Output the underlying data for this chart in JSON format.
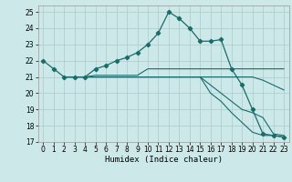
{
  "xlabel": "Humidex (Indice chaleur)",
  "xlim": [
    -0.5,
    23.5
  ],
  "ylim": [
    17,
    25.4
  ],
  "yticks": [
    17,
    18,
    19,
    20,
    21,
    22,
    23,
    24,
    25
  ],
  "xticks": [
    0,
    1,
    2,
    3,
    4,
    5,
    6,
    7,
    8,
    9,
    10,
    11,
    12,
    13,
    14,
    15,
    16,
    17,
    18,
    19,
    20,
    21,
    22,
    23
  ],
  "bg_color": "#cce8e8",
  "grid_color": "#aacccc",
  "line_color": "#1a6b6b",
  "series": [
    {
      "x": [
        0,
        1,
        2,
        3,
        4,
        5,
        6,
        7,
        8,
        9,
        10,
        11,
        12,
        13,
        14,
        15,
        16,
        17,
        18,
        19,
        20,
        21,
        22,
        23
      ],
      "y": [
        22.0,
        21.5,
        21.0,
        21.0,
        21.0,
        21.5,
        21.7,
        22.0,
        22.2,
        22.5,
        23.0,
        23.7,
        25.0,
        24.6,
        24.0,
        23.2,
        23.2,
        23.3,
        21.5,
        20.5,
        19.0,
        17.5,
        17.4,
        17.3
      ],
      "marker": true
    },
    {
      "x": [
        2,
        3,
        4,
        5,
        6,
        7,
        8,
        9,
        10,
        11,
        12,
        13,
        14,
        15,
        16,
        17,
        18,
        19,
        20,
        21,
        22,
        23
      ],
      "y": [
        21.0,
        21.0,
        21.0,
        21.1,
        21.1,
        21.1,
        21.1,
        21.1,
        21.5,
        21.5,
        21.5,
        21.5,
        21.5,
        21.5,
        21.5,
        21.5,
        21.5,
        21.5,
        21.5,
        21.5,
        21.5,
        21.5
      ],
      "marker": false
    },
    {
      "x": [
        2,
        3,
        4,
        5,
        6,
        7,
        8,
        9,
        10,
        11,
        12,
        13,
        14,
        15,
        16,
        17,
        18,
        19,
        20,
        21,
        22,
        23
      ],
      "y": [
        21.0,
        21.0,
        21.0,
        21.0,
        21.0,
        21.0,
        21.0,
        21.0,
        21.0,
        21.0,
        21.0,
        21.0,
        21.0,
        21.0,
        21.0,
        21.0,
        21.0,
        21.0,
        21.0,
        20.8,
        20.5,
        20.2
      ],
      "marker": false
    },
    {
      "x": [
        2,
        3,
        4,
        5,
        6,
        7,
        8,
        9,
        10,
        11,
        12,
        13,
        14,
        15,
        16,
        17,
        18,
        19,
        20,
        21,
        22,
        23
      ],
      "y": [
        21.0,
        21.0,
        21.0,
        21.0,
        21.0,
        21.0,
        21.0,
        21.0,
        21.0,
        21.0,
        21.0,
        21.0,
        21.0,
        21.0,
        20.5,
        20.0,
        19.5,
        19.0,
        18.8,
        18.5,
        17.5,
        17.4
      ],
      "marker": false
    },
    {
      "x": [
        2,
        3,
        4,
        5,
        6,
        7,
        8,
        9,
        10,
        11,
        12,
        13,
        14,
        15,
        16,
        17,
        18,
        19,
        20,
        21,
        22,
        23
      ],
      "y": [
        21.0,
        21.0,
        21.0,
        21.0,
        21.0,
        21.0,
        21.0,
        21.0,
        21.0,
        21.0,
        21.0,
        21.0,
        21.0,
        21.0,
        20.0,
        19.5,
        18.8,
        18.2,
        17.6,
        17.4,
        17.4,
        17.3
      ],
      "marker": false
    }
  ]
}
